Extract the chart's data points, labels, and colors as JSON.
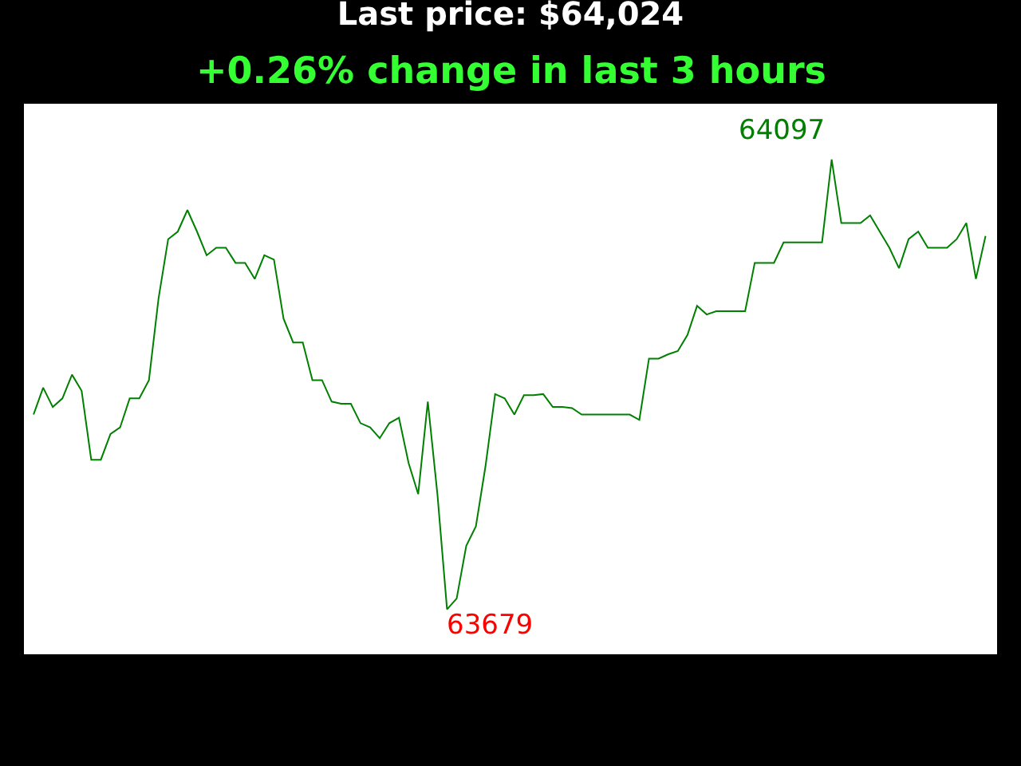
{
  "chart_data": {
    "type": "line",
    "title": "Last price: $64,024",
    "subtitle": "+0.26% change in last 3 hours",
    "categories": [
      null,
      null,
      null,
      null,
      null,
      null,
      null,
      null,
      null,
      null,
      null,
      null,
      null,
      null,
      null,
      null,
      null,
      null,
      null,
      null,
      null,
      null,
      null,
      null,
      null,
      null,
      null,
      null,
      null,
      null,
      null,
      null,
      null,
      null,
      null,
      null,
      null,
      null,
      null,
      null,
      null,
      null,
      null,
      null,
      null,
      null,
      null,
      null,
      null,
      null,
      null,
      null,
      null,
      null,
      null,
      null,
      null,
      null,
      null,
      null,
      null,
      null,
      null,
      null,
      null,
      null,
      null,
      null,
      null,
      null,
      null,
      null,
      null,
      null,
      null,
      null,
      null,
      null,
      null,
      null,
      null,
      null,
      null,
      null,
      null,
      null,
      null,
      null,
      null,
      null,
      null,
      null,
      null,
      null,
      null,
      null,
      null,
      null,
      null,
      null
    ],
    "series": [
      {
        "color": "#008000",
        "values": [
          63860,
          63885,
          63867,
          63875,
          63897,
          63882,
          63818,
          63818,
          63842,
          63848,
          63875,
          63875,
          63892,
          63968,
          64023,
          64030,
          64050,
          64030,
          64008,
          64015,
          64015,
          64001,
          64001,
          63986,
          64008,
          64004,
          63949,
          63927,
          63927,
          63892,
          63892,
          63872,
          63870,
          63870,
          63852,
          63848,
          63838,
          63852,
          63857,
          63815,
          63786,
          63872,
          63786,
          63679,
          63689,
          63738,
          63756,
          63812,
          63879,
          63875,
          63860,
          63878,
          63878,
          63879,
          63867,
          63867,
          63866,
          63860,
          63860,
          63860,
          63860,
          63860,
          63860,
          63855,
          63912,
          63912,
          63916,
          63919,
          63934,
          63961,
          63953,
          63956,
          63956,
          63956,
          63956,
          64001,
          64001,
          64001,
          64020,
          64020,
          64020,
          64020,
          64020,
          64097,
          64038,
          64038,
          64038,
          64045,
          64030,
          64015,
          63996,
          64023,
          64030,
          64015,
          64015,
          64015,
          64023,
          64038,
          63986,
          64026
        ],
        "value_labels": [
          null,
          null,
          null,
          null,
          null,
          null,
          null,
          null,
          null,
          null,
          null,
          null,
          null,
          null,
          null,
          null,
          null,
          null,
          null,
          null,
          null,
          null,
          null,
          null,
          null,
          null,
          null,
          null,
          null,
          null,
          null,
          null,
          null,
          null,
          null,
          null,
          null,
          null,
          null,
          null,
          null,
          null,
          null,
          "63679",
          null,
          null,
          null,
          null,
          null,
          null,
          null,
          null,
          null,
          null,
          null,
          null,
          null,
          null,
          null,
          null,
          null,
          null,
          null,
          null,
          null,
          null,
          null,
          null,
          null,
          null,
          null,
          null,
          null,
          null,
          null,
          null,
          null,
          null,
          null,
          null,
          null,
          null,
          null,
          "64097",
          null,
          null,
          null,
          null,
          null,
          null,
          null,
          null,
          null,
          null,
          null,
          null,
          null,
          null,
          null,
          null
        ]
      }
    ],
    "marker": "none",
    "line_style": "solid"
  }
}
